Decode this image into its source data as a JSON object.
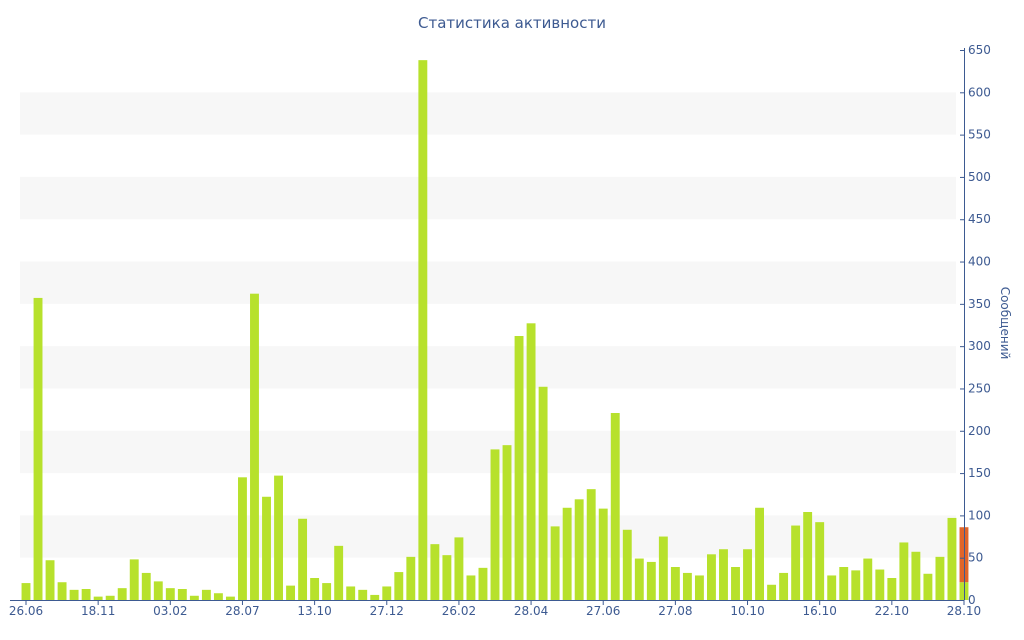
{
  "chart_data": {
    "type": "bar",
    "title": "Статистика активности",
    "xlabel": "",
    "ylabel": "Сообщений",
    "y_axis_side": "right",
    "ylim": [
      0,
      650
    ],
    "yticks": [
      0,
      50,
      100,
      150,
      200,
      250,
      300,
      350,
      400,
      450,
      500,
      550,
      600,
      650
    ],
    "grid": "alternating horizontal bands",
    "x_tick_labels": [
      {
        "index": 0,
        "label": "26.06"
      },
      {
        "index": 6,
        "label": "18.11"
      },
      {
        "index": 12,
        "label": "03.02"
      },
      {
        "index": 18,
        "label": "28.07"
      },
      {
        "index": 24,
        "label": "13.10"
      },
      {
        "index": 30,
        "label": "27.12"
      },
      {
        "index": 36,
        "label": "26.02"
      },
      {
        "index": 42,
        "label": "28.04"
      },
      {
        "index": 48,
        "label": "27.06"
      },
      {
        "index": 54,
        "label": "27.08"
      },
      {
        "index": 60,
        "label": "10.10"
      },
      {
        "index": 66,
        "label": "16.10"
      },
      {
        "index": 72,
        "label": "22.10"
      },
      {
        "index": 78,
        "label": "28.10"
      }
    ],
    "series": [
      {
        "color": "#b7e12c",
        "values": [
          20,
          357,
          47,
          21,
          12,
          13,
          4,
          5,
          14,
          48,
          32,
          22,
          14,
          13,
          5,
          12,
          8,
          4,
          145,
          362,
          122,
          147,
          17,
          96,
          26,
          20,
          64,
          16,
          12,
          6,
          16,
          33,
          51,
          638,
          66,
          53,
          74,
          29,
          38,
          178,
          183,
          312,
          327,
          252,
          87,
          109,
          119,
          131,
          108,
          221,
          83,
          49,
          45,
          75,
          39,
          32,
          29,
          54,
          60,
          39,
          60,
          109,
          18,
          32,
          88,
          104,
          92,
          29,
          39,
          35,
          49,
          36,
          26,
          68,
          57,
          31,
          51,
          97,
          21
        ]
      },
      {
        "color": "#e0652a",
        "values": [
          0,
          0,
          0,
          0,
          0,
          0,
          0,
          0,
          0,
          0,
          0,
          0,
          0,
          0,
          0,
          0,
          0,
          0,
          0,
          0,
          0,
          0,
          0,
          0,
          0,
          0,
          0,
          0,
          0,
          0,
          0,
          0,
          0,
          0,
          0,
          0,
          0,
          0,
          0,
          0,
          0,
          0,
          0,
          0,
          0,
          0,
          0,
          0,
          0,
          0,
          0,
          0,
          0,
          0,
          0,
          0,
          0,
          0,
          0,
          0,
          0,
          0,
          0,
          0,
          0,
          0,
          0,
          0,
          0,
          0,
          0,
          0,
          0,
          0,
          0,
          0,
          0,
          0,
          65
        ]
      }
    ],
    "stacked": true
  }
}
